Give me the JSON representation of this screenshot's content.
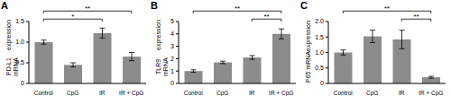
{
  "chart_data": [
    {
      "type": "bar",
      "panel": "A",
      "y_label": [
        "PD-L1 mRNA",
        "expression"
      ],
      "categories": [
        "Control",
        "CpG",
        "IR",
        "IR + CpG"
      ],
      "values": [
        1.0,
        0.45,
        1.22,
        0.65
      ],
      "errors": [
        0.05,
        0.05,
        0.12,
        0.1
      ],
      "color": "#8c8c8c",
      "ylim": [
        0,
        1.5
      ],
      "yticks": [
        0,
        0.5,
        {
          "value": 1,
          "label": "1.0"
        },
        1.5
      ],
      "annotations": [
        {
          "from": "Control",
          "to": "IR",
          "label": "*"
        },
        {
          "from": "Control",
          "to": "IR + CpG",
          "label": "**"
        }
      ]
    },
    {
      "type": "bar",
      "panel": "B",
      "y_label": [
        "TLR9 mRNA",
        "expression"
      ],
      "categories": [
        "Control",
        "CpG",
        "IR",
        "IR + CpG"
      ],
      "values": [
        1.0,
        1.7,
        2.1,
        4.0
      ],
      "errors": [
        0.1,
        0.1,
        0.15,
        0.4
      ],
      "color": "#8c8c8c",
      "ylim": [
        0,
        5
      ],
      "yticks": [
        0,
        1,
        2,
        3,
        4,
        5
      ],
      "annotations": [
        {
          "from": "IR",
          "to": "IR + CpG",
          "label": "**"
        },
        {
          "from": "Control",
          "to": "IR + CpG",
          "label": "**"
        }
      ]
    },
    {
      "type": "bar",
      "panel": "C",
      "y_label": [
        "P65 mRNA",
        "expression"
      ],
      "categories": [
        "Control",
        "CpG",
        "IR",
        "IR + CpG"
      ],
      "values": [
        1.0,
        1.52,
        1.42,
        0.2
      ],
      "errors": [
        0.08,
        0.2,
        0.3,
        0.03
      ],
      "color": "#8c8c8c",
      "ylim": [
        0,
        2
      ],
      "yticks": [
        0,
        0.5,
        {
          "value": 1,
          "label": "1.0"
        },
        1.5,
        {
          "value": 2,
          "label": "2.0"
        }
      ],
      "annotations": [
        {
          "from": "IR",
          "to": "IR + CpG",
          "label": "**"
        },
        {
          "from": "Control",
          "to": "IR + CpG",
          "label": "**"
        }
      ]
    }
  ]
}
